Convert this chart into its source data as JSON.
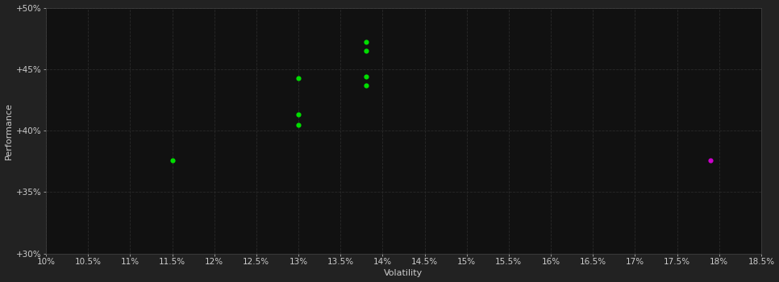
{
  "background_color": "#222222",
  "plot_bg_color": "#111111",
  "grid_color": "#2a2a2a",
  "xlabel": "Volatility",
  "ylabel": "Performance",
  "xlim": [
    0.1,
    0.185
  ],
  "ylim": [
    0.3,
    0.5
  ],
  "xticks": [
    0.1,
    0.105,
    0.11,
    0.115,
    0.12,
    0.125,
    0.13,
    0.135,
    0.14,
    0.145,
    0.15,
    0.155,
    0.16,
    0.165,
    0.17,
    0.175,
    0.18,
    0.185
  ],
  "yticks": [
    0.3,
    0.35,
    0.4,
    0.45,
    0.5
  ],
  "xtick_labels": [
    "10%",
    "10.5%",
    "11%",
    "11.5%",
    "12%",
    "12.5%",
    "13%",
    "13.5%",
    "14%",
    "14.5%",
    "15%",
    "15.5%",
    "16%",
    "16.5%",
    "17%",
    "17.5%",
    "18%",
    "18.5%"
  ],
  "ytick_labels": [
    "+30%",
    "+35%",
    "+40%",
    "+45%",
    "+50%"
  ],
  "green_points": [
    [
      0.115,
      0.376
    ],
    [
      0.13,
      0.443
    ],
    [
      0.13,
      0.405
    ],
    [
      0.13,
      0.413
    ],
    [
      0.138,
      0.444
    ],
    [
      0.138,
      0.437
    ],
    [
      0.138,
      0.472
    ],
    [
      0.138,
      0.465
    ]
  ],
  "magenta_points": [
    [
      0.179,
      0.376
    ]
  ],
  "point_size": 20,
  "green_color": "#00dd00",
  "magenta_color": "#cc00cc",
  "tick_color": "#cccccc",
  "label_color": "#cccccc",
  "label_fontsize": 8,
  "tick_fontsize": 7.5
}
